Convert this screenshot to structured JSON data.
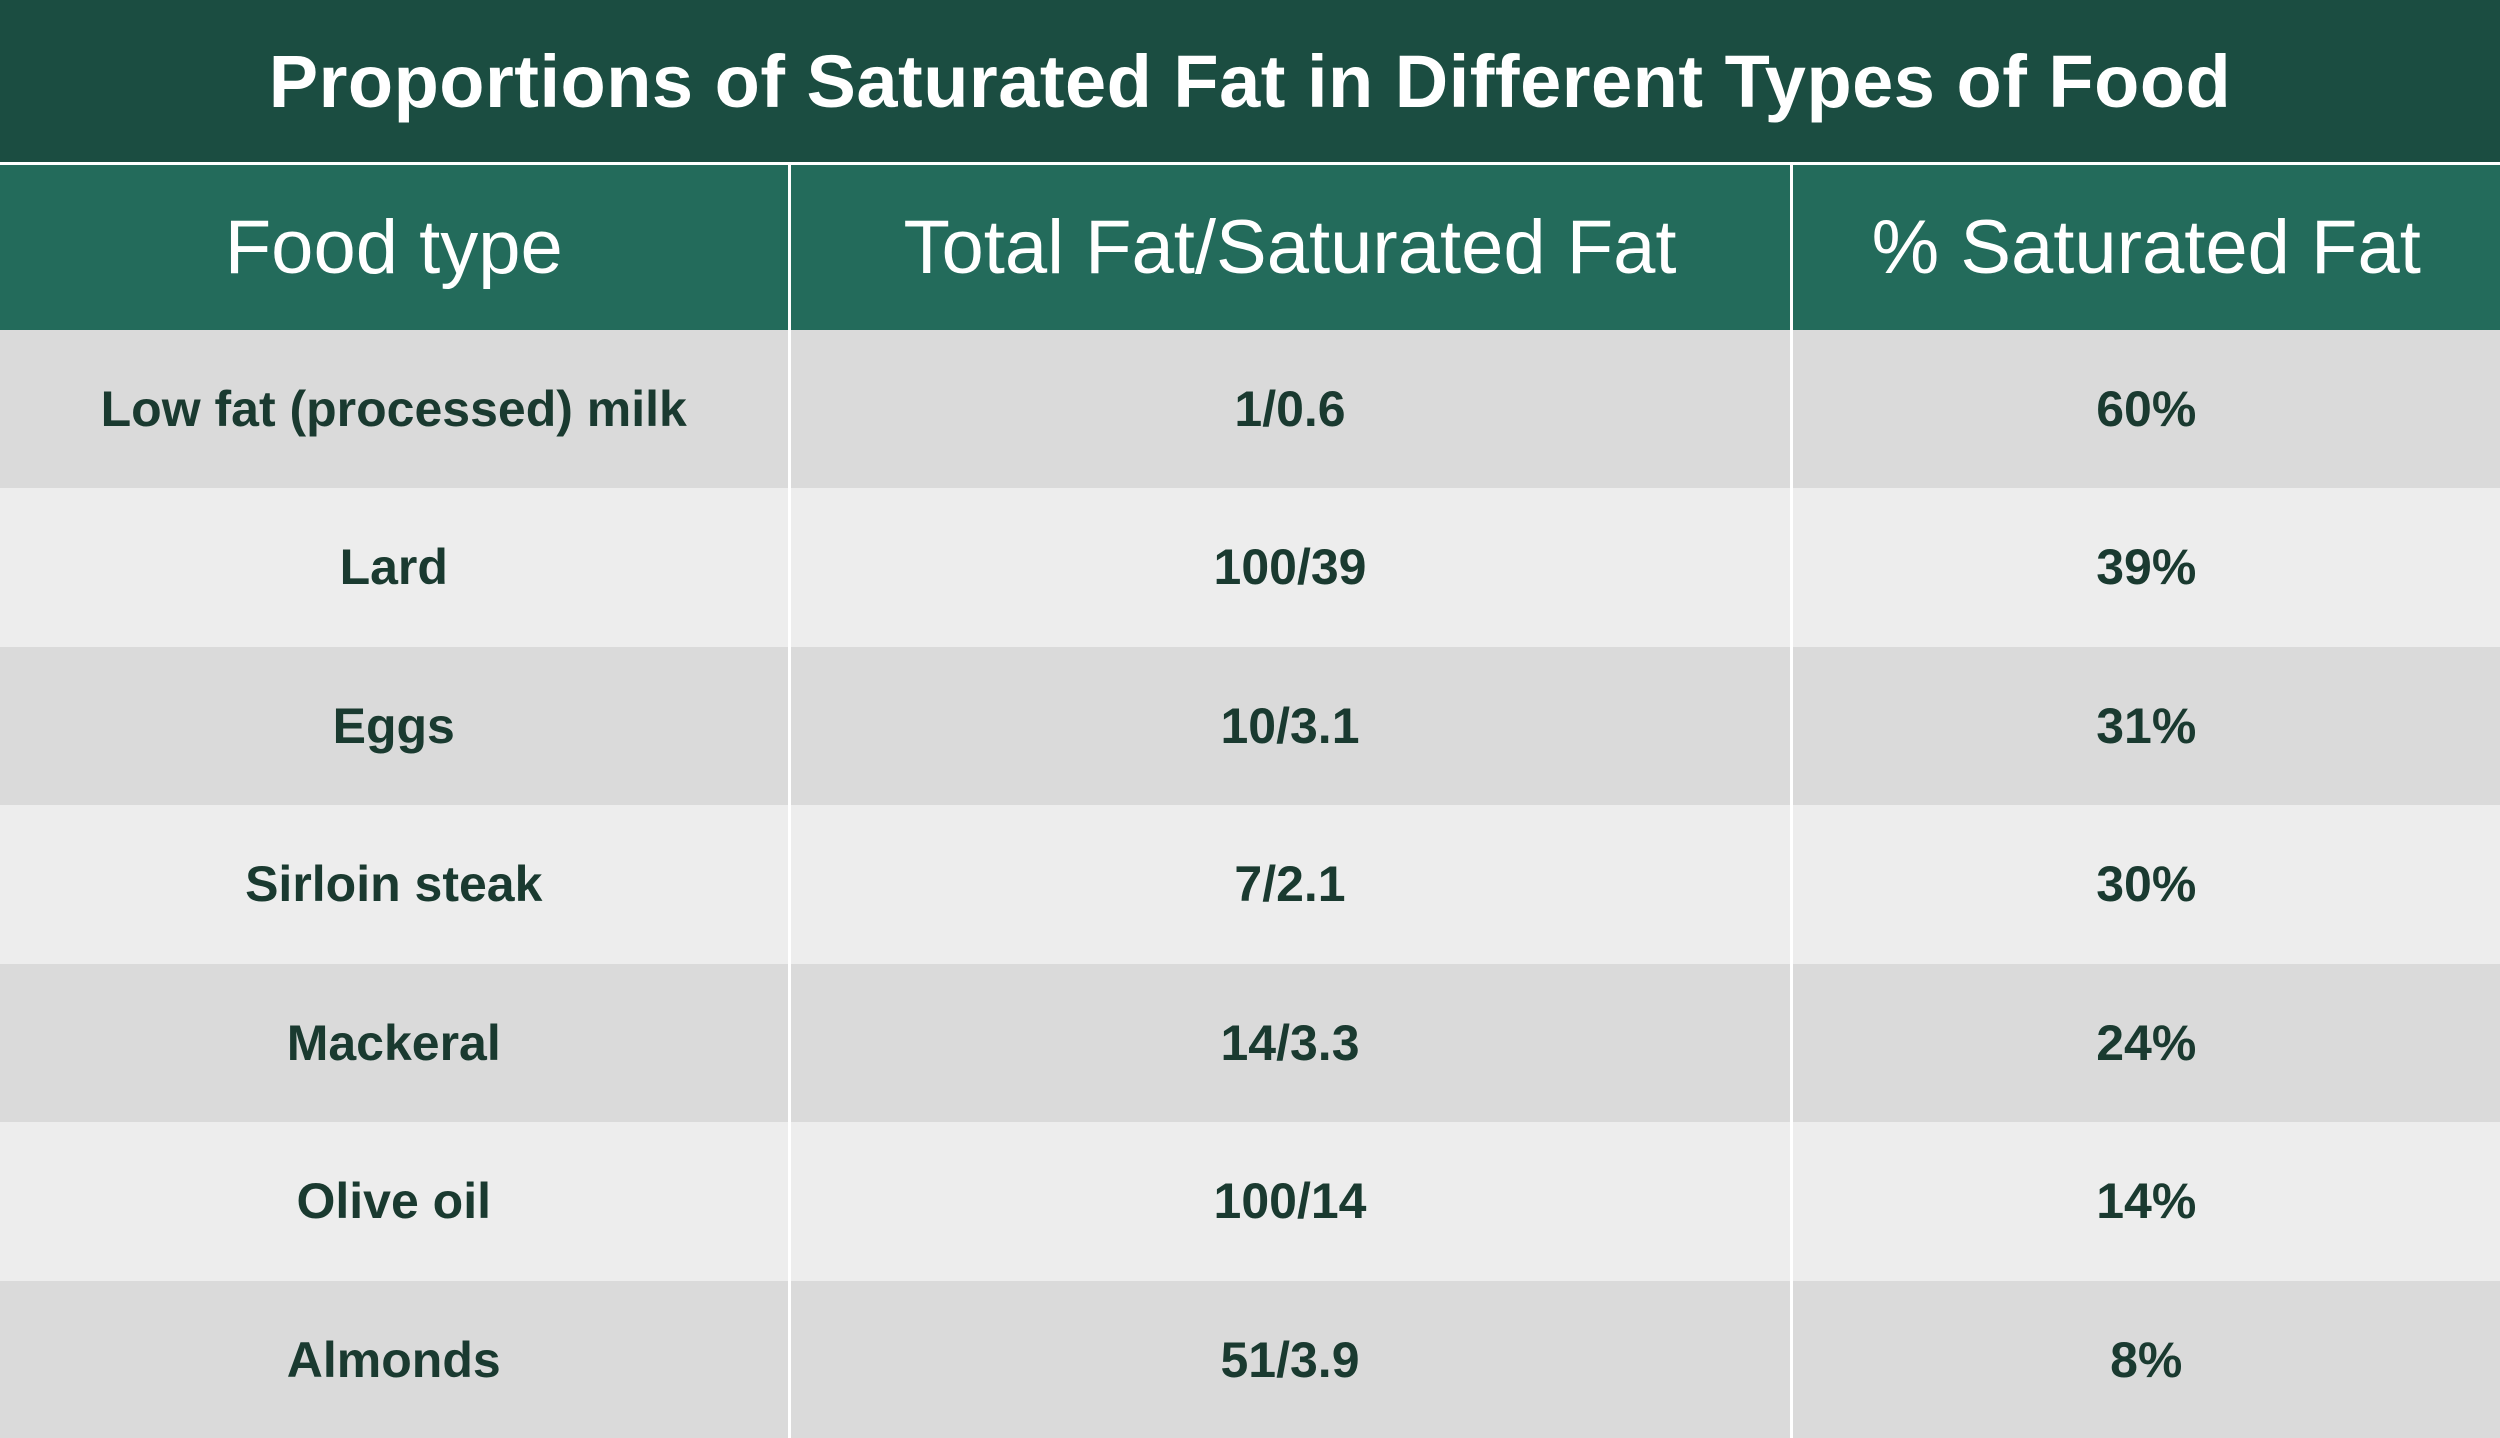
{
  "chart_data": {
    "type": "table",
    "title": "Proportions of Saturated Fat in Different Types of Food",
    "columns": [
      "Food type",
      "Total Fat/Saturated Fat",
      "% Saturated Fat"
    ],
    "rows": [
      [
        "Low fat (processed) milk",
        "1/0.6",
        "60%"
      ],
      [
        "Lard",
        "100/39",
        "39%"
      ],
      [
        "Eggs",
        "10/3.1",
        "31%"
      ],
      [
        "Sirloin steak",
        "7/2.1",
        "30%"
      ],
      [
        "Mackeral",
        "14/3.3",
        "24%"
      ],
      [
        "Olive oil",
        "100/14",
        "14%"
      ],
      [
        "Almonds",
        "51/3.9",
        "8%"
      ]
    ]
  },
  "colors": {
    "title_background": "#1b4d41",
    "header_background": "#236b5b",
    "row_dark": "#dadada",
    "row_light": "#ededed",
    "cell_text": "#1a3a30",
    "header_text": "#ffffff"
  }
}
